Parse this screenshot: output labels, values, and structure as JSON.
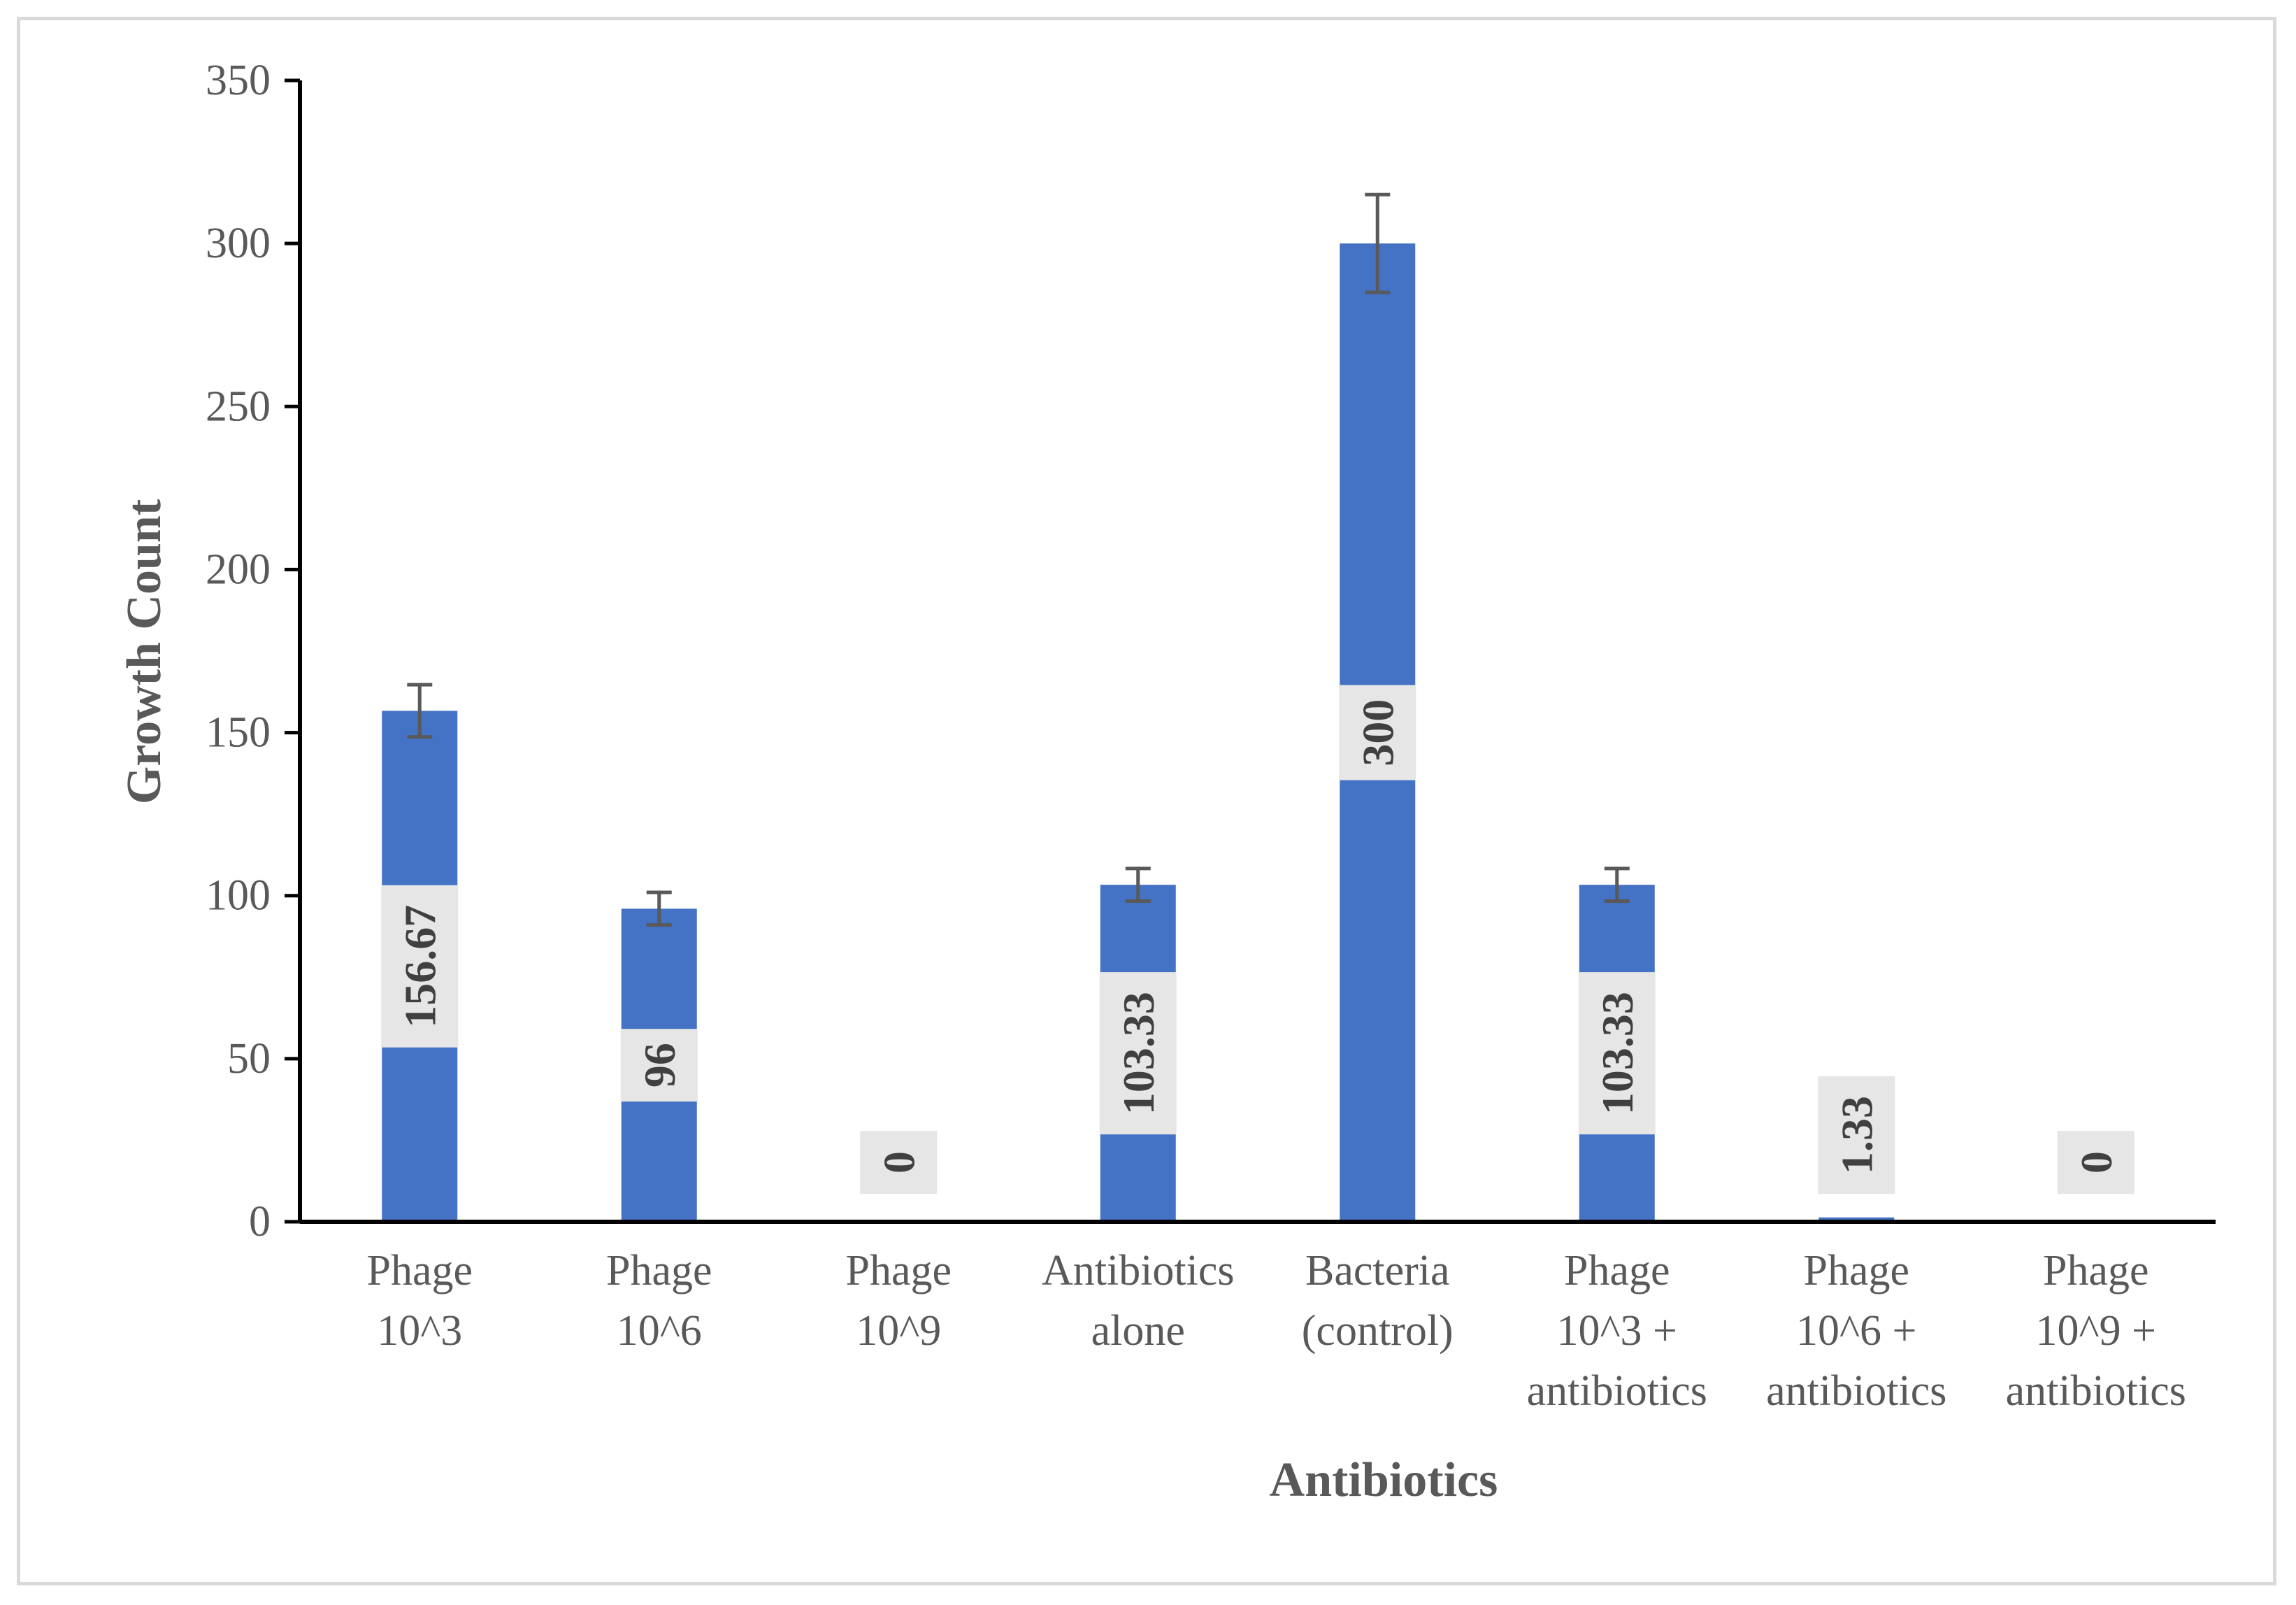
{
  "chart_data": {
    "type": "bar",
    "title": "",
    "xlabel": "Antibiotics",
    "ylabel": "Growth Count",
    "ylim": [
      0,
      350
    ],
    "yticks": [
      0,
      50,
      100,
      150,
      200,
      250,
      300,
      350
    ],
    "grid": false,
    "categories": [
      [
        "Phage",
        "10^3"
      ],
      [
        "Phage",
        "10^6"
      ],
      [
        "Phage",
        "10^9"
      ],
      [
        "Antibiotics",
        "alone"
      ],
      [
        "Bacteria",
        "(control)"
      ],
      [
        "Phage",
        "10^3 +",
        "antibiotics"
      ],
      [
        "Phage",
        "10^6 +",
        "antibiotics"
      ],
      [
        "Phage",
        "10^9 +",
        "antibiotics"
      ]
    ],
    "values": [
      156.67,
      96,
      0,
      103.33,
      300,
      103.33,
      1.33,
      0
    ],
    "value_labels": [
      "156.67",
      "96",
      "0",
      "103.33",
      "300",
      "103.33",
      "1.33",
      "0"
    ],
    "errors": [
      8,
      5,
      0,
      5,
      15,
      5,
      0,
      0
    ],
    "bar_color": "#4472c4",
    "label_bg_color": "#e7e6e6",
    "axis_color": "#000000",
    "error_color": "#595959"
  }
}
